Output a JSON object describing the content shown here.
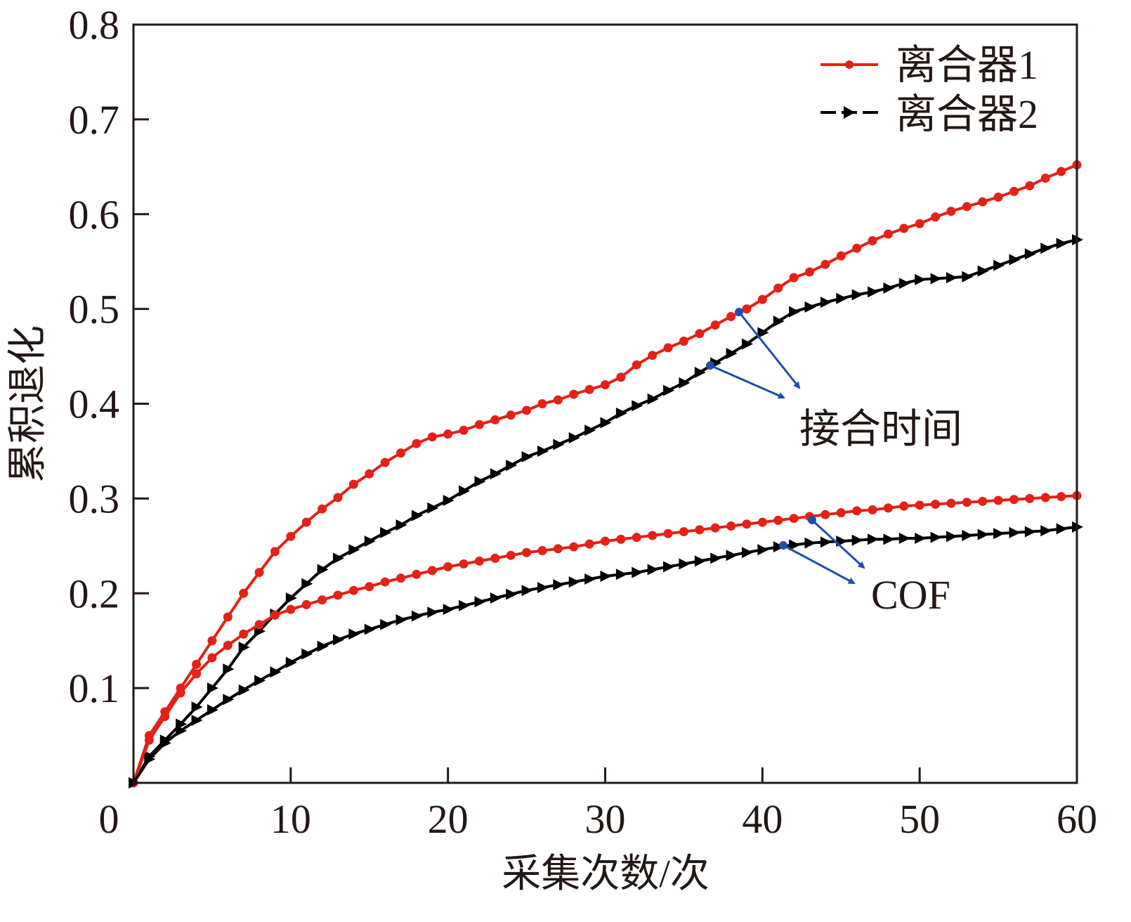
{
  "chart_data": {
    "type": "line",
    "title": "",
    "xlabel": "采集次数/次",
    "ylabel": "累积退化",
    "xlim": [
      0,
      60
    ],
    "ylim": [
      0,
      0.8
    ],
    "xticks": [
      "0",
      "10",
      "20",
      "30",
      "40",
      "50",
      "60"
    ],
    "yticks": [
      "0.1",
      "0.2",
      "0.3",
      "0.4",
      "0.5",
      "0.6",
      "0.7",
      "0.8"
    ],
    "grid": false,
    "legend": {
      "placement": "top-right",
      "entries": [
        "离合器1",
        "离合器2"
      ]
    },
    "annotations": [
      {
        "text": "接合时间",
        "color": "#1f4fa8"
      },
      {
        "text": "COF",
        "color": "#1f4fa8"
      }
    ],
    "series": [
      {
        "name": "离合器1",
        "group": "接合时间",
        "color": "#e32119",
        "marker": "circle",
        "x": [
          0,
          1,
          2,
          3,
          4,
          5,
          6,
          7,
          8,
          9,
          10,
          11,
          12,
          13,
          14,
          15,
          16,
          17,
          18,
          19,
          20,
          21,
          22,
          23,
          24,
          25,
          26,
          27,
          28,
          29,
          30,
          31,
          32,
          33,
          34,
          35,
          36,
          37,
          38,
          39,
          40,
          41,
          42,
          43,
          44,
          45,
          46,
          47,
          48,
          49,
          50,
          51,
          52,
          53,
          54,
          55,
          56,
          57,
          58,
          59,
          60
        ],
        "values": [
          0,
          0.05,
          0.075,
          0.1,
          0.125,
          0.15,
          0.175,
          0.2,
          0.222,
          0.244,
          0.26,
          0.275,
          0.289,
          0.301,
          0.315,
          0.326,
          0.338,
          0.348,
          0.358,
          0.365,
          0.368,
          0.372,
          0.378,
          0.383,
          0.388,
          0.393,
          0.4,
          0.404,
          0.41,
          0.415,
          0.42,
          0.428,
          0.441,
          0.451,
          0.459,
          0.466,
          0.474,
          0.483,
          0.492,
          0.5,
          0.51,
          0.522,
          0.533,
          0.539,
          0.547,
          0.556,
          0.564,
          0.572,
          0.579,
          0.585,
          0.59,
          0.597,
          0.603,
          0.608,
          0.613,
          0.618,
          0.624,
          0.63,
          0.638,
          0.645,
          0.652
        ]
      },
      {
        "name": "离合器2",
        "group": "接合时间",
        "color": "#000000",
        "marker": "triangle-right",
        "x": [
          0,
          1,
          2,
          3,
          4,
          5,
          6,
          7,
          8,
          9,
          10,
          11,
          12,
          13,
          14,
          15,
          16,
          17,
          18,
          19,
          20,
          21,
          22,
          23,
          24,
          25,
          26,
          27,
          28,
          29,
          30,
          31,
          32,
          33,
          34,
          35,
          36,
          37,
          38,
          39,
          40,
          41,
          42,
          43,
          44,
          45,
          46,
          47,
          48,
          49,
          50,
          51,
          52,
          53,
          54,
          55,
          56,
          57,
          58,
          59,
          60
        ],
        "values": [
          0,
          0.028,
          0.045,
          0.062,
          0.08,
          0.1,
          0.12,
          0.143,
          0.16,
          0.178,
          0.195,
          0.21,
          0.225,
          0.237,
          0.246,
          0.255,
          0.264,
          0.272,
          0.282,
          0.29,
          0.298,
          0.308,
          0.318,
          0.326,
          0.335,
          0.344,
          0.35,
          0.357,
          0.364,
          0.372,
          0.38,
          0.39,
          0.398,
          0.405,
          0.414,
          0.422,
          0.433,
          0.443,
          0.453,
          0.463,
          0.475,
          0.487,
          0.497,
          0.502,
          0.507,
          0.511,
          0.515,
          0.518,
          0.522,
          0.527,
          0.531,
          0.532,
          0.533,
          0.534,
          0.54,
          0.546,
          0.552,
          0.558,
          0.564,
          0.569,
          0.573
        ]
      },
      {
        "name": "离合器1",
        "group": "COF",
        "color": "#e32119",
        "marker": "circle",
        "x": [
          0,
          1,
          2,
          3,
          4,
          5,
          6,
          7,
          8,
          9,
          10,
          11,
          12,
          13,
          14,
          15,
          16,
          17,
          18,
          19,
          20,
          21,
          22,
          23,
          24,
          25,
          26,
          27,
          28,
          29,
          30,
          31,
          32,
          33,
          34,
          35,
          36,
          37,
          38,
          39,
          40,
          41,
          42,
          43,
          44,
          45,
          46,
          47,
          48,
          49,
          50,
          51,
          52,
          53,
          54,
          55,
          56,
          57,
          58,
          59,
          60
        ],
        "values": [
          0,
          0.045,
          0.07,
          0.095,
          0.115,
          0.132,
          0.145,
          0.157,
          0.167,
          0.177,
          0.183,
          0.188,
          0.193,
          0.198,
          0.203,
          0.207,
          0.212,
          0.216,
          0.22,
          0.224,
          0.228,
          0.231,
          0.234,
          0.237,
          0.24,
          0.243,
          0.245,
          0.247,
          0.249,
          0.252,
          0.255,
          0.257,
          0.259,
          0.261,
          0.263,
          0.265,
          0.267,
          0.269,
          0.271,
          0.273,
          0.275,
          0.277,
          0.279,
          0.281,
          0.283,
          0.285,
          0.287,
          0.288,
          0.29,
          0.292,
          0.293,
          0.294,
          0.295,
          0.296,
          0.297,
          0.298,
          0.299,
          0.3,
          0.301,
          0.302,
          0.303
        ]
      },
      {
        "name": "离合器2",
        "group": "COF",
        "color": "#000000",
        "marker": "triangle-right",
        "x": [
          0,
          1,
          2,
          3,
          4,
          5,
          6,
          7,
          8,
          9,
          10,
          11,
          12,
          13,
          14,
          15,
          16,
          17,
          18,
          19,
          20,
          21,
          22,
          23,
          24,
          25,
          26,
          27,
          28,
          29,
          30,
          31,
          32,
          33,
          34,
          35,
          36,
          37,
          38,
          39,
          40,
          41,
          42,
          43,
          44,
          45,
          46,
          47,
          48,
          49,
          50,
          51,
          52,
          53,
          54,
          55,
          56,
          57,
          58,
          59,
          60
        ],
        "values": [
          0,
          0.025,
          0.042,
          0.055,
          0.066,
          0.077,
          0.088,
          0.098,
          0.108,
          0.117,
          0.127,
          0.136,
          0.144,
          0.151,
          0.157,
          0.162,
          0.167,
          0.172,
          0.176,
          0.18,
          0.183,
          0.187,
          0.191,
          0.195,
          0.199,
          0.203,
          0.206,
          0.209,
          0.212,
          0.215,
          0.218,
          0.22,
          0.222,
          0.225,
          0.228,
          0.231,
          0.234,
          0.237,
          0.24,
          0.243,
          0.246,
          0.249,
          0.251,
          0.253,
          0.254,
          0.255,
          0.256,
          0.257,
          0.257,
          0.258,
          0.258,
          0.259,
          0.26,
          0.261,
          0.262,
          0.263,
          0.264,
          0.265,
          0.266,
          0.268,
          0.27
        ]
      }
    ]
  }
}
